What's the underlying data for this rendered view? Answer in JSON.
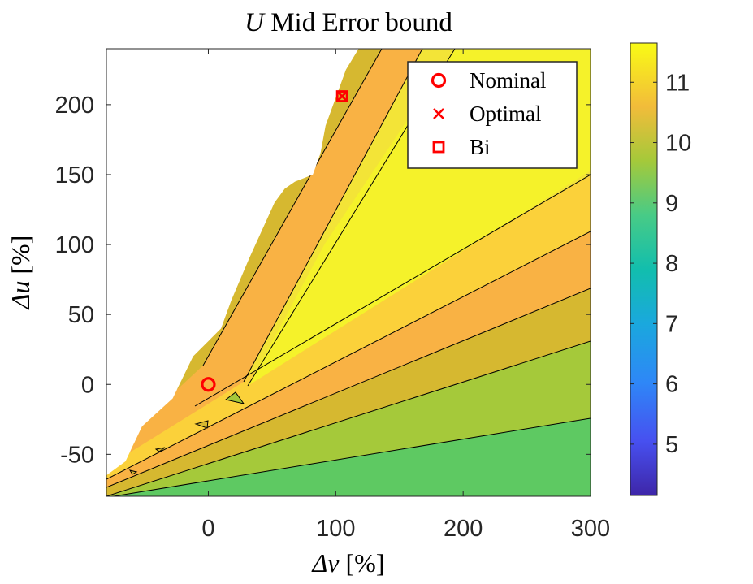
{
  "chart_data": {
    "type": "contour",
    "title": {
      "symbol": "U",
      "text": " Mid Error bound"
    },
    "xlabel": {
      "symbol": "Δν",
      "unit": " [%]"
    },
    "ylabel": {
      "symbol": "Δu",
      "unit": " [%]"
    },
    "xlim": [
      -80,
      300
    ],
    "ylim": [
      -80,
      240
    ],
    "xticks": [
      "0",
      "100",
      "200",
      "300"
    ],
    "xtick_values": [
      0,
      100,
      200,
      300
    ],
    "yticks": [
      "-50",
      "0",
      "50",
      "100",
      "150",
      "200"
    ],
    "ytick_values": [
      -50,
      0,
      50,
      100,
      150,
      200
    ],
    "colorbar": {
      "range": [
        4.15,
        11.65
      ],
      "ticks": [
        "5",
        "6",
        "7",
        "8",
        "9",
        "10",
        "11"
      ],
      "tick_values": [
        5,
        6,
        7,
        8,
        9,
        10,
        11
      ],
      "colormap": "parula"
    },
    "legend": {
      "position": "top-right",
      "entries": [
        {
          "label": "Nominal",
          "marker": "circle",
          "color": "#ff0000"
        },
        {
          "label": "Optimal",
          "marker": "x",
          "color": "#ff0000"
        },
        {
          "label": "Bi",
          "marker": "square",
          "color": "#ff0000"
        }
      ]
    },
    "markers": [
      {
        "name": "Nominal",
        "x": 0,
        "y": 0
      },
      {
        "name": "Optimal",
        "x": 105,
        "y": 206
      },
      {
        "name": "Bi",
        "x": 105,
        "y": 206
      }
    ],
    "valid_region_boundary": [
      [
        -80,
        -65
      ],
      [
        -65,
        -55
      ],
      [
        -52,
        -30
      ],
      [
        -40,
        -20
      ],
      [
        -28,
        -10
      ],
      [
        -12,
        20
      ],
      [
        10,
        40
      ],
      [
        18,
        60
      ],
      [
        32,
        90
      ],
      [
        52,
        130
      ],
      [
        60,
        140
      ],
      [
        68,
        145
      ],
      [
        82,
        150
      ],
      [
        88,
        165
      ],
      [
        92,
        185
      ],
      [
        98,
        200
      ],
      [
        108,
        225
      ],
      [
        118,
        240
      ]
    ],
    "bands": [
      {
        "level": 9.4,
        "color": "#5ec962",
        "desc": "lower-right region"
      },
      {
        "level": 9.8,
        "color": "#a5c93a"
      },
      {
        "level": 10.2,
        "color": "#d6b830"
      },
      {
        "level": 10.5,
        "color": "#f9b244"
      },
      {
        "level": 10.8,
        "color": "#fbd13a"
      },
      {
        "level": 11.1,
        "color": "#f3e437"
      },
      {
        "level": 11.5,
        "color": "#f5f22a",
        "desc": "ridge peak"
      }
    ],
    "grid": false
  }
}
